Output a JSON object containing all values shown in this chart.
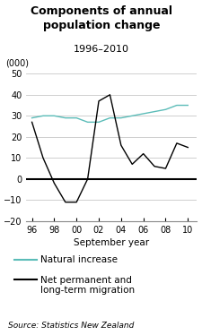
{
  "title": "Components of annual\npopulation change",
  "subtitle": "1996–2010",
  "xlabel": "September year",
  "ylabel": "(000)",
  "ylim": [
    -20,
    50
  ],
  "yticks": [
    -20,
    -10,
    0,
    10,
    20,
    30,
    40,
    50
  ],
  "xticks": [
    1996,
    1998,
    2000,
    2002,
    2004,
    2006,
    2008,
    2010
  ],
  "xticklabels": [
    "96",
    "98",
    "00",
    "02",
    "04",
    "06",
    "08",
    "10"
  ],
  "source": "Source: Statistics New Zealand",
  "natural_increase": {
    "x": [
      1996,
      1997,
      1998,
      1999,
      2000,
      2001,
      2002,
      2003,
      2004,
      2005,
      2006,
      2007,
      2008,
      2009,
      2010
    ],
    "y": [
      29,
      30,
      30,
      29,
      29,
      27,
      27,
      29,
      29,
      30,
      31,
      32,
      33,
      35,
      35
    ],
    "color": "#5bbcb8",
    "label": "Natural increase"
  },
  "net_migration": {
    "x": [
      1996,
      1997,
      1998,
      1999,
      2000,
      2001,
      2002,
      2003,
      2004,
      2005,
      2006,
      2007,
      2008,
      2009,
      2010
    ],
    "y": [
      27,
      10,
      -2,
      -11,
      -11,
      0,
      37,
      40,
      16,
      7,
      12,
      6,
      5,
      17,
      15
    ],
    "color": "#000000",
    "label": "Net permanent and\nlong-term migration"
  },
  "zero_line_color": "#000000",
  "grid_color": "#c8c8c8",
  "background_color": "#ffffff",
  "title_fontsize": 9,
  "subtitle_fontsize": 8,
  "tick_fontsize": 7,
  "xlabel_fontsize": 7.5,
  "ylabel_fontsize": 7,
  "legend_fontsize": 7.5,
  "source_fontsize": 6.5
}
